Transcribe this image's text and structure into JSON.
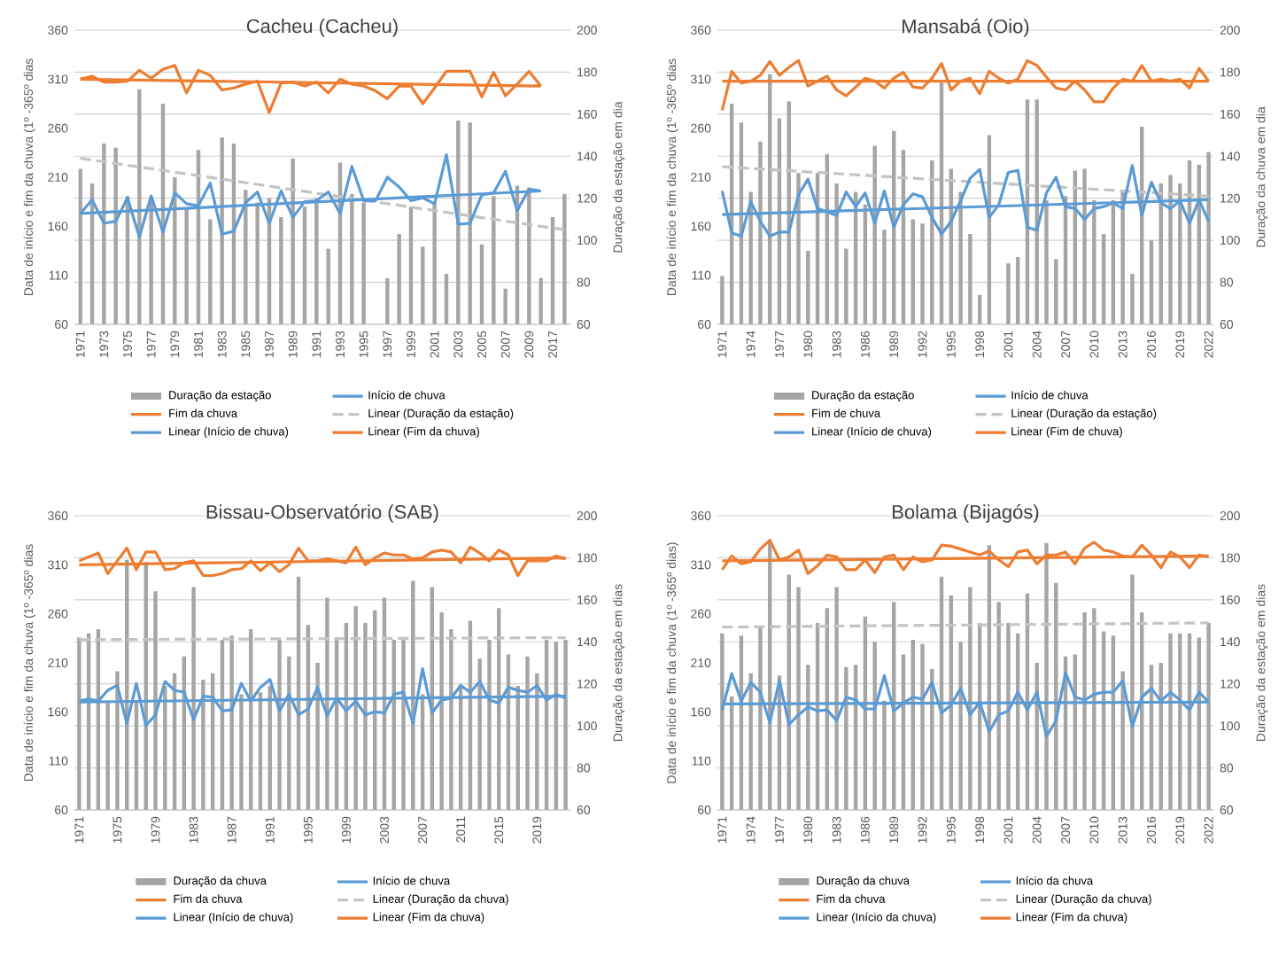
{
  "chart_data": [
    {
      "type": "bar",
      "title": "Cacheu (Cacheu)",
      "ylabel": "Data de início e fim da chuva (1º -365º dias",
      "y2label": "Duração da estação em dia",
      "grid": "y",
      "legend": "bottom",
      "categories": [
        "1971",
        null,
        "1973",
        null,
        "1975",
        null,
        "1977",
        null,
        "1979",
        null,
        "1981",
        null,
        "1983",
        null,
        "1985",
        null,
        "1987",
        null,
        "1989",
        null,
        "1991",
        null,
        "1993",
        null,
        "1995",
        null,
        "1997",
        null,
        "1999",
        null,
        "2001",
        null,
        "2003",
        null,
        "2005",
        null,
        "2007",
        null,
        "2009",
        null,
        "2017",
        null
      ],
      "ylim": [
        60,
        360
      ],
      "yticks": [
        60,
        110,
        160,
        210,
        260,
        310,
        360
      ],
      "y2lim": [
        60,
        200
      ],
      "y2ticks": [
        60,
        80,
        100,
        120,
        140,
        160,
        180,
        200
      ],
      "series": [
        {
          "name": "Duração da estação",
          "axis": "y2",
          "color": "#a5a5a5",
          "values": [
            134,
            127,
            146,
            144,
            121,
            172,
            120,
            165,
            130,
            115,
            143,
            110,
            149,
            146,
            124,
            118,
            120,
            111,
            139,
            116,
            120,
            96,
            137,
            122,
            118,
            null,
            82,
            103,
            116,
            97,
            118,
            84,
            157,
            156,
            98,
            121,
            77,
            126,
            125,
            82,
            111,
            122
          ]
        },
        {
          "name": "Início de chuva",
          "type": "line",
          "color": "#5b9bd5",
          "values": [
            173,
            187,
            163,
            165,
            189,
            149,
            191,
            154,
            194,
            183,
            181,
            204,
            152,
            155,
            184,
            195,
            163,
            196,
            169,
            185,
            186,
            195,
            173,
            221,
            186,
            186,
            210,
            200,
            186,
            189,
            183,
            233,
            162,
            163,
            192,
            194,
            216,
            176,
            198,
            196,
            null,
            null
          ]
        },
        {
          "name": "Fim da chuva",
          "type": "line",
          "color": "#ed7d31",
          "values": [
            310,
            313,
            307,
            307,
            308,
            319,
            311,
            320,
            324,
            296,
            319,
            314,
            299,
            301,
            305,
            308,
            276,
            306,
            307,
            303,
            307,
            296,
            310,
            305,
            303,
            298,
            290,
            303,
            303,
            285,
            301,
            318,
            318,
            318,
            292,
            317,
            293,
            305,
            318,
            303,
            null,
            null
          ]
        },
        {
          "name": "Linear (Duração da estação)",
          "type": "line",
          "axis": "y2",
          "line_style": "dashed",
          "color": "#c4c4c4",
          "values": [
            139,
            null,
            null,
            null,
            null,
            null,
            null,
            null,
            null,
            null,
            null,
            null,
            null,
            null,
            null,
            null,
            null,
            null,
            null,
            null,
            null,
            null,
            null,
            null,
            null,
            null,
            null,
            null,
            null,
            null,
            null,
            null,
            null,
            null,
            null,
            null,
            null,
            null,
            null,
            null,
            null,
            105
          ]
        },
        {
          "name": "Linear (Início de chuva)",
          "type": "line",
          "color": "#5b9bd5",
          "values": [
            173,
            null,
            null,
            null,
            null,
            null,
            null,
            null,
            null,
            null,
            null,
            null,
            null,
            null,
            null,
            null,
            null,
            null,
            null,
            null,
            null,
            null,
            null,
            null,
            null,
            null,
            null,
            null,
            null,
            null,
            null,
            null,
            null,
            null,
            null,
            null,
            null,
            null,
            null,
            196,
            null,
            null
          ]
        },
        {
          "name": "Linear (Fim da chuva)",
          "type": "line",
          "color": "#ed7d31",
          "values": [
            310,
            null,
            null,
            null,
            null,
            null,
            null,
            null,
            null,
            null,
            null,
            null,
            null,
            null,
            null,
            null,
            null,
            null,
            null,
            null,
            null,
            null,
            null,
            null,
            null,
            null,
            null,
            null,
            null,
            null,
            null,
            null,
            null,
            null,
            null,
            null,
            null,
            null,
            null,
            303,
            null,
            null
          ]
        }
      ]
    },
    {
      "type": "bar",
      "title": "Mansabá (Oio)",
      "ylabel": "Data de início e fim da chuva (1º -365º dias",
      "y2label": "Duração da chuva em dia",
      "grid": "y",
      "legend": "bottom",
      "categories": [
        "1971",
        null,
        null,
        "1974",
        null,
        null,
        "1977",
        null,
        null,
        "1980",
        null,
        null,
        "1983",
        null,
        null,
        "1986",
        null,
        null,
        "1989",
        null,
        null,
        "1992",
        null,
        null,
        "1995",
        null,
        null,
        "1998",
        null,
        null,
        "2001",
        null,
        null,
        "2004",
        null,
        null,
        "2007",
        null,
        null,
        "2010",
        null,
        null,
        "2013",
        null,
        null,
        "2016",
        null,
        null,
        "2019",
        null,
        null,
        "2022"
      ],
      "ylim": [
        60,
        360
      ],
      "yticks": [
        60,
        110,
        160,
        210,
        260,
        310,
        360
      ],
      "y2lim": [
        60,
        200
      ],
      "y2ticks": [
        60,
        80,
        100,
        120,
        140,
        160,
        180,
        200
      ],
      "series": [
        {
          "name": "Duração da estação",
          "axis": "y2",
          "color": "#a5a5a5",
          "values": [
            83,
            165,
            156,
            123,
            147,
            179,
            158,
            166,
            132,
            95,
            132,
            141,
            127,
            96,
            123,
            117,
            145,
            105,
            152,
            143,
            110,
            108,
            138,
            175,
            134,
            123,
            103,
            74,
            150,
            null,
            89,
            92,
            167,
            167,
            119,
            91,
            121,
            133,
            134,
            119,
            103,
            119,
            123,
            84,
            154,
            100,
            127,
            131,
            127,
            138,
            136,
            142
          ]
        },
        {
          "name": "Início de chuva",
          "type": "line",
          "color": "#5b9bd5",
          "values": [
            196,
            153,
            150,
            185,
            165,
            150,
            154,
            154,
            192,
            208,
            178,
            175,
            171,
            195,
            180,
            194,
            163,
            196,
            159,
            182,
            193,
            190,
            169,
            152,
            165,
            186,
            209,
            218,
            169,
            182,
            215,
            217,
            159,
            156,
            194,
            210,
            180,
            178,
            167,
            178,
            180,
            184,
            178,
            222,
            171,
            205,
            184,
            178,
            186,
            163,
            187,
            165
          ]
        },
        {
          "name": "Fim de chuva",
          "type": "line",
          "color": "#ed7d31",
          "values": [
            278,
            318,
            306,
            308,
            314,
            328,
            314,
            322,
            329,
            303,
            308,
            313,
            299,
            293,
            302,
            311,
            308,
            301,
            311,
            317,
            302,
            301,
            311,
            326,
            299,
            308,
            311,
            295,
            318,
            311,
            306,
            310,
            329,
            324,
            312,
            301,
            299,
            308,
            299,
            287,
            287,
            301,
            310,
            308,
            324,
            308,
            310,
            308,
            310,
            301,
            321,
            308
          ]
        },
        {
          "name": "Linear (Duração da estação)",
          "type": "line",
          "axis": "y2",
          "line_style": "dashed",
          "color": "#c4c4c4",
          "values": [
            135,
            null,
            null,
            null,
            null,
            null,
            null,
            null,
            null,
            null,
            null,
            null,
            null,
            null,
            null,
            null,
            null,
            null,
            null,
            null,
            null,
            null,
            null,
            null,
            null,
            null,
            null,
            null,
            null,
            null,
            null,
            null,
            null,
            null,
            null,
            null,
            null,
            null,
            null,
            null,
            null,
            null,
            null,
            null,
            null,
            null,
            null,
            null,
            null,
            null,
            null,
            121
          ]
        },
        {
          "name": "Linear (Início de chuva)",
          "type": "line",
          "color": "#5b9bd5",
          "values": [
            172,
            null,
            null,
            null,
            null,
            null,
            null,
            null,
            null,
            null,
            null,
            null,
            null,
            null,
            null,
            null,
            null,
            null,
            null,
            null,
            null,
            null,
            null,
            null,
            null,
            null,
            null,
            null,
            null,
            null,
            null,
            null,
            null,
            null,
            null,
            null,
            null,
            null,
            null,
            null,
            null,
            null,
            null,
            null,
            null,
            null,
            null,
            null,
            null,
            null,
            null,
            187
          ]
        },
        {
          "name": "Linear (Fim de chuva)",
          "type": "line",
          "color": "#ed7d31",
          "values": [
            308,
            null,
            null,
            null,
            null,
            null,
            null,
            null,
            null,
            null,
            null,
            null,
            null,
            null,
            null,
            null,
            null,
            null,
            null,
            null,
            null,
            null,
            null,
            null,
            null,
            null,
            null,
            null,
            null,
            null,
            null,
            null,
            null,
            null,
            null,
            null,
            null,
            null,
            null,
            null,
            null,
            null,
            null,
            null,
            null,
            null,
            null,
            null,
            null,
            null,
            null,
            308
          ]
        }
      ]
    },
    {
      "type": "bar",
      "title": "Bissau-Observatório (SAB)",
      "ylabel": "Data de início e fim da chuva (1º -365º dias",
      "y2label": "Duração da estação em dias",
      "grid": "y",
      "legend": "bottom",
      "categories": [
        "1971",
        null,
        null,
        null,
        "1975",
        null,
        null,
        null,
        "1979",
        null,
        null,
        null,
        "1983",
        null,
        null,
        null,
        "1987",
        null,
        null,
        null,
        "1991",
        null,
        null,
        null,
        "1995",
        null,
        null,
        null,
        "1999",
        null,
        null,
        null,
        "2003",
        null,
        null,
        null,
        "2007",
        null,
        null,
        null,
        "2011",
        null,
        null,
        null,
        "2015",
        null,
        null,
        null,
        "2019",
        null,
        null,
        null
      ],
      "ylim": [
        60,
        360
      ],
      "yticks": [
        60,
        110,
        160,
        210,
        260,
        310,
        360
      ],
      "y2lim": [
        60,
        200
      ],
      "y2ticks": [
        60,
        80,
        100,
        120,
        140,
        160,
        180,
        200
      ],
      "series": [
        {
          "name": "Duração da chuva",
          "axis": "y2",
          "color": "#a5a5a5",
          "values": [
            142,
            144,
            146,
            112,
            126,
            179,
            112,
            178,
            164,
            119,
            125,
            133,
            166,
            122,
            125,
            141,
            143,
            115,
            146,
            116,
            119,
            141,
            133,
            171,
            148,
            130,
            161,
            141,
            149,
            157,
            149,
            155,
            161,
            141,
            141,
            169,
            115,
            166,
            154,
            146,
            119,
            150,
            132,
            141,
            156,
            134,
            119,
            133,
            125,
            141,
            140,
            141
          ]
        },
        {
          "name": "Início de chuva",
          "type": "line",
          "color": "#5b9bd5",
          "values": [
            171,
            173,
            171,
            182,
            187,
            148,
            189,
            146,
            157,
            191,
            182,
            180,
            152,
            176,
            175,
            161,
            162,
            189,
            171,
            185,
            193,
            161,
            178,
            157,
            163,
            185,
            156,
            174,
            161,
            171,
            157,
            160,
            159,
            178,
            180,
            148,
            204,
            159,
            172,
            174,
            187,
            180,
            191,
            172,
            169,
            185,
            182,
            180,
            187,
            172,
            178,
            174
          ]
        },
        {
          "name": "Fim da chuva",
          "type": "line",
          "color": "#ed7d31",
          "values": [
            314,
            318,
            322,
            301,
            314,
            327,
            305,
            323,
            323,
            305,
            306,
            312,
            314,
            299,
            299,
            301,
            305,
            306,
            314,
            304,
            312,
            303,
            310,
            327,
            314,
            314,
            316,
            314,
            312,
            328,
            310,
            317,
            322,
            320,
            320,
            316,
            317,
            323,
            325,
            323,
            312,
            328,
            322,
            314,
            325,
            320,
            299,
            314,
            314,
            314,
            319,
            316
          ]
        },
        {
          "name": "Linear (Duração da chuva)",
          "type": "line",
          "axis": "y2",
          "line_style": "dashed",
          "color": "#c4c4c4",
          "values": [
            141,
            null,
            null,
            null,
            null,
            null,
            null,
            null,
            null,
            null,
            null,
            null,
            null,
            null,
            null,
            null,
            null,
            null,
            null,
            null,
            null,
            null,
            null,
            null,
            null,
            null,
            null,
            null,
            null,
            null,
            null,
            null,
            null,
            null,
            null,
            null,
            null,
            null,
            null,
            null,
            null,
            null,
            null,
            null,
            null,
            null,
            null,
            null,
            null,
            null,
            null,
            142
          ]
        },
        {
          "name": "Linear (Início de chuva)",
          "type": "line",
          "color": "#5b9bd5",
          "values": [
            170,
            null,
            null,
            null,
            null,
            null,
            null,
            null,
            null,
            null,
            null,
            null,
            null,
            null,
            null,
            null,
            null,
            null,
            null,
            null,
            null,
            null,
            null,
            null,
            null,
            null,
            null,
            null,
            null,
            null,
            null,
            null,
            null,
            null,
            null,
            null,
            null,
            null,
            null,
            null,
            null,
            null,
            null,
            null,
            null,
            null,
            null,
            null,
            null,
            null,
            null,
            176
          ]
        },
        {
          "name": "Linear (Fim da chuva)",
          "type": "line",
          "color": "#ed7d31",
          "values": [
            310,
            null,
            null,
            null,
            null,
            null,
            null,
            null,
            null,
            null,
            null,
            null,
            null,
            null,
            null,
            null,
            null,
            null,
            null,
            null,
            null,
            null,
            null,
            null,
            null,
            null,
            null,
            null,
            null,
            null,
            null,
            null,
            null,
            null,
            null,
            null,
            null,
            null,
            null,
            null,
            null,
            null,
            null,
            null,
            null,
            null,
            null,
            null,
            null,
            null,
            null,
            317
          ]
        }
      ]
    },
    {
      "type": "bar",
      "title": "Bolama (Bijagós)",
      "ylabel": "Data de início e fim da chuva (1º -365º dias)",
      "y2label": "Duração da estação em dias",
      "grid": "y",
      "legend": "bottom",
      "categories": [
        "1971",
        null,
        null,
        "1974",
        null,
        null,
        "1977",
        null,
        null,
        "1980",
        null,
        null,
        "1983",
        null,
        null,
        "1986",
        null,
        null,
        "1989",
        null,
        null,
        "1992",
        null,
        null,
        "1995",
        null,
        null,
        "1998",
        null,
        null,
        "2001",
        null,
        null,
        "2004",
        null,
        null,
        "2007",
        null,
        null,
        "2010",
        null,
        null,
        "2013",
        null,
        null,
        "2016",
        null,
        null,
        "2019",
        null,
        null,
        "2022"
      ],
      "ylim": [
        60,
        360
      ],
      "yticks": [
        60,
        110,
        160,
        210,
        260,
        310,
        360
      ],
      "y2lim": [
        60,
        200
      ],
      "y2ticks": [
        60,
        80,
        100,
        120,
        140,
        160,
        180,
        200
      ],
      "series": [
        {
          "name": "Duração da chuva",
          "axis": "y2",
          "color": "#a5a5a5",
          "values": [
            144,
            114,
            143,
            125,
            147,
            187,
            124,
            172,
            166,
            129,
            149,
            156,
            166,
            128,
            129,
            152,
            140,
            112,
            159,
            134,
            141,
            139,
            127,
            171,
            162,
            140,
            166,
            149,
            186,
            159,
            149,
            144,
            163,
            130,
            187,
            168,
            133,
            134,
            154,
            156,
            145,
            143,
            126,
            172,
            154,
            129,
            130,
            144,
            144,
            144,
            142,
            149
          ]
        },
        {
          "name": "Início da chuva",
          "type": "line",
          "color": "#5b9bd5",
          "values": [
            162,
            199,
            171,
            190,
            180,
            149,
            192,
            147,
            157,
            165,
            161,
            162,
            151,
            175,
            172,
            163,
            163,
            197,
            161,
            169,
            175,
            173,
            190,
            159,
            167,
            184,
            157,
            170,
            140,
            157,
            161,
            180,
            162,
            180,
            135,
            151,
            200,
            175,
            172,
            178,
            180,
            180,
            192,
            145,
            175,
            184,
            171,
            180,
            172,
            162,
            180,
            170
          ]
        },
        {
          "name": "Fim da chuva",
          "type": "line",
          "color": "#ed7d31",
          "values": [
            305,
            319,
            311,
            313,
            326,
            335,
            315,
            318,
            325,
            301,
            309,
            320,
            318,
            305,
            305,
            315,
            302,
            318,
            320,
            305,
            318,
            313,
            315,
            330,
            329,
            326,
            323,
            320,
            324,
            315,
            308,
            323,
            325,
            311,
            320,
            320,
            323,
            311,
            327,
            333,
            325,
            323,
            319,
            318,
            330,
            320,
            307,
            323,
            318,
            307,
            320,
            318
          ]
        },
        {
          "name": "Linear (Duração da chuva)",
          "type": "line",
          "axis": "y2",
          "line_style": "dashed",
          "color": "#c4c4c4",
          "values": [
            147,
            null,
            null,
            null,
            null,
            null,
            null,
            null,
            null,
            null,
            null,
            null,
            null,
            null,
            null,
            null,
            null,
            null,
            null,
            null,
            null,
            null,
            null,
            null,
            null,
            null,
            null,
            null,
            null,
            null,
            null,
            null,
            null,
            null,
            null,
            null,
            null,
            null,
            null,
            null,
            null,
            null,
            null,
            null,
            null,
            null,
            null,
            null,
            null,
            null,
            null,
            149
          ]
        },
        {
          "name": "Linear (Início da chuva)",
          "type": "line",
          "color": "#5b9bd5",
          "values": [
            168,
            null,
            null,
            null,
            null,
            null,
            null,
            null,
            null,
            null,
            null,
            null,
            null,
            null,
            null,
            null,
            null,
            null,
            null,
            null,
            null,
            null,
            null,
            null,
            null,
            null,
            null,
            null,
            null,
            null,
            null,
            null,
            null,
            null,
            null,
            null,
            null,
            null,
            null,
            null,
            null,
            null,
            null,
            null,
            null,
            null,
            null,
            null,
            null,
            null,
            null,
            170
          ]
        },
        {
          "name": "Linear (Fim da chuva)",
          "type": "line",
          "color": "#ed7d31",
          "values": [
            314,
            null,
            null,
            null,
            null,
            null,
            null,
            null,
            null,
            null,
            null,
            null,
            null,
            null,
            null,
            null,
            null,
            null,
            null,
            null,
            null,
            null,
            null,
            null,
            null,
            null,
            null,
            null,
            null,
            null,
            null,
            null,
            null,
            null,
            null,
            null,
            null,
            null,
            null,
            null,
            null,
            null,
            null,
            null,
            null,
            null,
            null,
            null,
            null,
            null,
            null,
            319
          ]
        }
      ]
    }
  ]
}
